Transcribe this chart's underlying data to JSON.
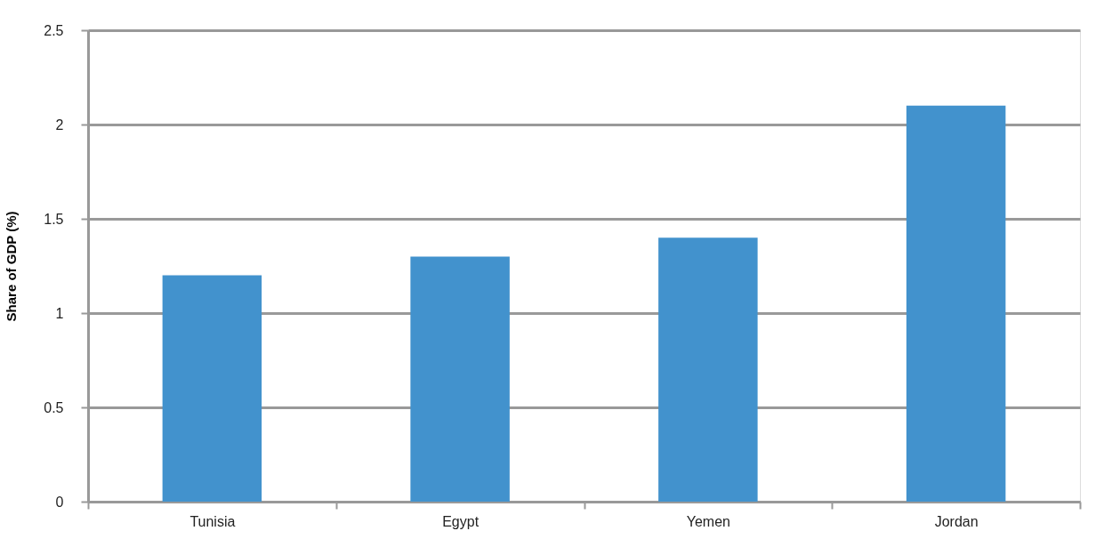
{
  "chart_data": {
    "type": "bar",
    "ylabel": "Share of GDP (%)",
    "categories": [
      "Tunisia",
      "Egypt",
      "Yemen",
      "Jordan"
    ],
    "values": [
      1.2,
      1.3,
      1.4,
      2.1
    ],
    "color": "#4292cd",
    "ylim": [
      0,
      2.5
    ],
    "yticks": [
      0,
      0.5,
      1,
      1.5,
      2,
      2.5
    ],
    "grid": "y"
  }
}
